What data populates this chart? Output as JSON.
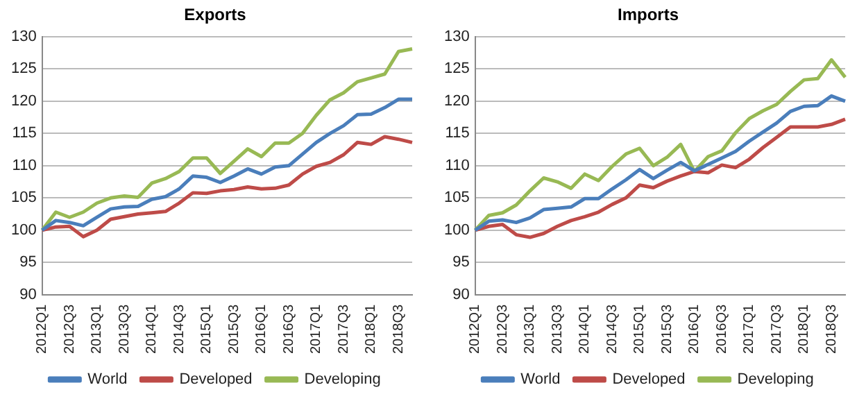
{
  "chart_data": [
    {
      "type": "line",
      "title": "Exports",
      "categories": [
        "2012Q1",
        null,
        "2012Q3",
        null,
        "2013Q1",
        null,
        "2013Q3",
        null,
        "2014Q1",
        null,
        "2014Q3",
        null,
        "2015Q1",
        null,
        "2015Q3",
        null,
        "2016Q1",
        null,
        "2016Q3",
        null,
        "2017Q1",
        null,
        "2017Q3",
        null,
        "2018Q1",
        null,
        "2018Q3",
        null
      ],
      "series": [
        {
          "name": "World",
          "color": "#4a7ebb",
          "values": [
            100,
            101.5,
            101.2,
            100.7,
            102,
            103.3,
            103.6,
            103.7,
            104.8,
            105.2,
            106.4,
            108.4,
            108.2,
            107.4,
            108.4,
            109.5,
            108.7,
            109.8,
            110,
            111.8,
            113.6,
            115,
            116.2,
            117.9,
            118,
            119,
            120.3,
            120.3
          ]
        },
        {
          "name": "Developed",
          "color": "#be4b48",
          "values": [
            100,
            100.5,
            100.6,
            99,
            100,
            101.7,
            102.1,
            102.5,
            102.7,
            102.9,
            104.2,
            105.8,
            105.7,
            106.1,
            106.3,
            106.7,
            106.4,
            106.5,
            107,
            108.7,
            109.9,
            110.5,
            111.7,
            113.6,
            113.3,
            114.5,
            114.1,
            113.6
          ]
        },
        {
          "name": "Developing",
          "color": "#98b954",
          "values": [
            100,
            102.8,
            102,
            102.8,
            104.2,
            105,
            105.3,
            105.1,
            107.3,
            108,
            109.1,
            111.2,
            111.2,
            108.8,
            110.7,
            112.6,
            111.4,
            113.5,
            113.5,
            115,
            117.8,
            120.2,
            121.3,
            123,
            123.6,
            124.2,
            127.7,
            128.1
          ]
        }
      ],
      "ylim": [
        90,
        130
      ],
      "yticks": [
        90,
        95,
        100,
        105,
        110,
        115,
        120,
        125,
        130
      ],
      "grid": "y",
      "legend": "bottom",
      "marker": "none"
    },
    {
      "type": "line",
      "title": "Imports",
      "categories": [
        "2012Q1",
        null,
        "2012Q3",
        null,
        "2013Q1",
        null,
        "2013Q3",
        null,
        "2014Q1",
        null,
        "2014Q3",
        null,
        "2015Q1",
        null,
        "2015Q3",
        null,
        "2016Q1",
        null,
        "2016Q3",
        null,
        "2017Q1",
        null,
        "2017Q3",
        null,
        "2018Q1",
        null,
        "2018Q3",
        null
      ],
      "series": [
        {
          "name": "World",
          "color": "#4a7ebb",
          "values": [
            100,
            101.4,
            101.6,
            101.2,
            101.9,
            103.2,
            103.4,
            103.6,
            104.9,
            104.9,
            106.4,
            107.8,
            109.4,
            108,
            109.3,
            110.5,
            109.2,
            110.2,
            111.2,
            112.2,
            113.8,
            115.2,
            116.6,
            118.4,
            119.2,
            119.3,
            120.8,
            120
          ]
        },
        {
          "name": "Developed",
          "color": "#be4b48",
          "values": [
            100,
            100.6,
            100.9,
            99.3,
            98.9,
            99.5,
            100.6,
            101.5,
            102.1,
            102.8,
            104,
            105,
            107,
            106.6,
            107.6,
            108.4,
            109.1,
            108.9,
            110.1,
            109.7,
            111,
            112.8,
            114.4,
            116,
            116,
            116,
            116.4,
            117.2
          ]
        },
        {
          "name": "Developing",
          "color": "#98b954",
          "values": [
            100,
            102.3,
            102.7,
            103.9,
            106.1,
            108.1,
            107.5,
            106.5,
            108.7,
            107.7,
            109.9,
            111.8,
            112.7,
            110,
            111.3,
            113.3,
            109.1,
            111.4,
            112.3,
            115.1,
            117.3,
            118.5,
            119.5,
            121.5,
            123.3,
            123.5,
            126.4,
            123.7
          ]
        }
      ],
      "ylim": [
        90,
        130
      ],
      "yticks": [
        90,
        95,
        100,
        105,
        110,
        115,
        120,
        125,
        130
      ],
      "grid": "y",
      "legend": "bottom",
      "marker": "none"
    }
  ]
}
